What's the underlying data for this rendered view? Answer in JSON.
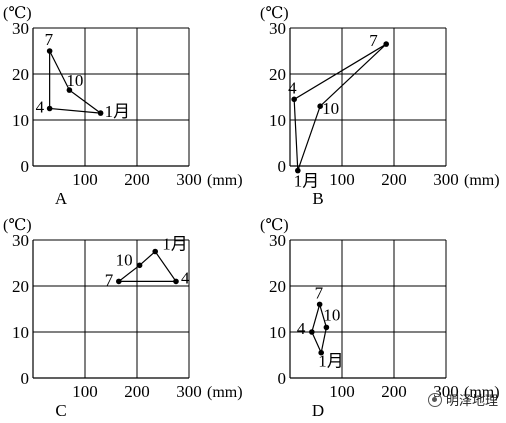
{
  "chart_data": [
    {
      "type": "line",
      "panel_label": "A",
      "y_unit": "(℃)",
      "x_unit": "(mm)",
      "xlim": [
        0,
        300
      ],
      "ylim": [
        0,
        30
      ],
      "x_ticks": [
        0,
        100,
        200,
        300
      ],
      "y_ticks": [
        0,
        10,
        20,
        30
      ],
      "x_tick_labels": [
        "0",
        "100",
        "200",
        "300"
      ],
      "y_tick_labels": [
        "0",
        "10",
        "20",
        "30"
      ],
      "grid": true,
      "points": [
        {
          "label": "1月",
          "x": 130,
          "y": 11.5
        },
        {
          "label": "4",
          "x": 32,
          "y": 12.5
        },
        {
          "label": "7",
          "x": 32,
          "y": 25
        },
        {
          "label": "10",
          "x": 70,
          "y": 16.5
        }
      ]
    },
    {
      "type": "line",
      "panel_label": "B",
      "y_unit": "(℃)",
      "x_unit": "(mm)",
      "xlim": [
        0,
        300
      ],
      "ylim": [
        0,
        30
      ],
      "x_ticks": [
        0,
        100,
        200,
        300
      ],
      "y_ticks": [
        0,
        10,
        20,
        30
      ],
      "x_tick_labels": [
        "0",
        "100",
        "200",
        "300"
      ],
      "y_tick_labels": [
        "0",
        "10",
        "20",
        "30"
      ],
      "grid": true,
      "points": [
        {
          "label": "1月",
          "x": 15,
          "y": -1
        },
        {
          "label": "4",
          "x": 8,
          "y": 14.5
        },
        {
          "label": "7",
          "x": 185,
          "y": 26.5
        },
        {
          "label": "10",
          "x": 58,
          "y": 13
        }
      ]
    },
    {
      "type": "line",
      "panel_label": "C",
      "y_unit": "(℃)",
      "x_unit": "(mm)",
      "xlim": [
        0,
        300
      ],
      "ylim": [
        0,
        30
      ],
      "x_ticks": [
        0,
        100,
        200,
        300
      ],
      "y_ticks": [
        0,
        10,
        20,
        30
      ],
      "x_tick_labels": [
        "0",
        "100",
        "200",
        "300"
      ],
      "y_tick_labels": [
        "0",
        "10",
        "20",
        "30"
      ],
      "grid": true,
      "points": [
        {
          "label": "1月",
          "x": 235,
          "y": 27.5
        },
        {
          "label": "4",
          "x": 275,
          "y": 21
        },
        {
          "label": "7",
          "x": 165,
          "y": 21
        },
        {
          "label": "10",
          "x": 205,
          "y": 24.5
        }
      ]
    },
    {
      "type": "line",
      "panel_label": "D",
      "y_unit": "(℃)",
      "x_unit": "(mm)",
      "xlim": [
        0,
        300
      ],
      "ylim": [
        0,
        30
      ],
      "x_ticks": [
        0,
        100,
        200,
        300
      ],
      "y_ticks": [
        0,
        10,
        20,
        30
      ],
      "x_tick_labels": [
        "0",
        "100",
        "200",
        "300"
      ],
      "y_tick_labels": [
        "0",
        "10",
        "20",
        "30"
      ],
      "grid": true,
      "points": [
        {
          "label": "1月",
          "x": 60,
          "y": 5.5
        },
        {
          "label": "4",
          "x": 42,
          "y": 10
        },
        {
          "label": "7",
          "x": 57,
          "y": 16
        },
        {
          "label": "10",
          "x": 70,
          "y": 11
        }
      ]
    }
  ],
  "watermark": {
    "text": "明泽地理",
    "icon": "wechat-logo-icon"
  }
}
